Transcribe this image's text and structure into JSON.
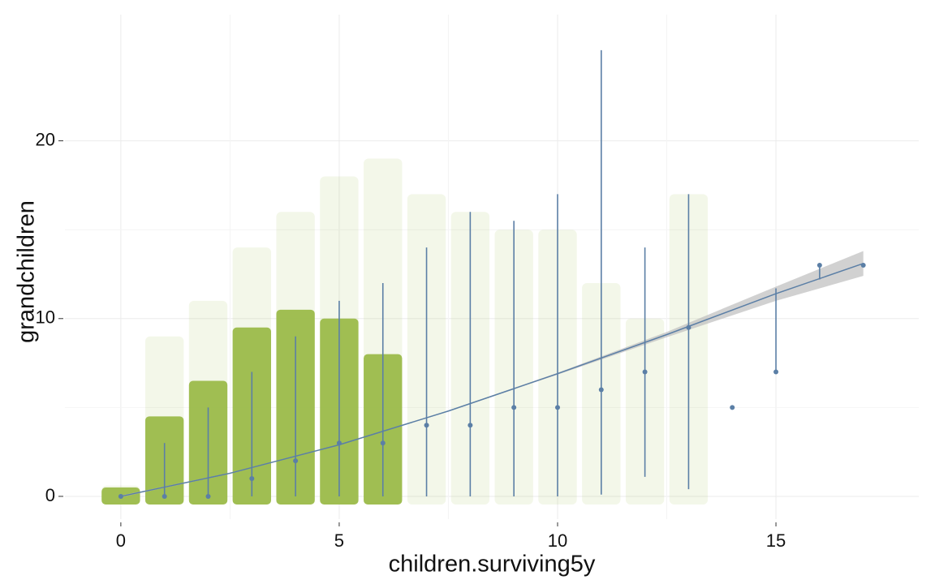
{
  "chart_data": {
    "type": "scatter",
    "x_label": "children.surviving5y",
    "y_label": "grandchildren",
    "xlim": [
      -1.28,
      18.27
    ],
    "ylim": [
      -1.28,
      27.1
    ],
    "xticks": [
      0,
      5,
      10,
      15
    ],
    "yticks": [
      0,
      10,
      20
    ],
    "grid": true,
    "cloud": {
      "color": "#9bbb4a",
      "x": [
        0,
        1,
        2,
        3,
        4,
        5,
        6,
        7,
        8,
        9,
        10,
        11,
        12,
        13
      ],
      "dense_top": [
        0.5,
        4.5,
        6.5,
        9.5,
        10.5,
        10,
        8,
        null,
        null,
        null,
        null,
        null,
        null,
        null
      ],
      "sparse_top": [
        0.6,
        9,
        11,
        14,
        16,
        18,
        19,
        17,
        16,
        15,
        15,
        12,
        10,
        17
      ]
    },
    "summary": {
      "color": "#5b7fa6",
      "x": [
        0,
        1,
        2,
        3,
        4,
        5,
        6,
        7,
        8,
        9,
        10,
        11,
        12,
        13,
        14,
        15,
        16,
        17
      ],
      "values": [
        0,
        0,
        0,
        1,
        2,
        3,
        3,
        4,
        4,
        5,
        5,
        6,
        7,
        9.5,
        5,
        7,
        13,
        13
      ],
      "low": [
        0,
        0,
        0,
        0,
        0,
        0,
        0,
        0,
        0,
        0,
        0,
        0.1,
        1.1,
        0.4,
        null,
        7,
        12.2,
        13
      ],
      "high": [
        0,
        3,
        5,
        7,
        9,
        11,
        12,
        14,
        16,
        15.5,
        17,
        25.1,
        14,
        17,
        null,
        11.7,
        13,
        13
      ]
    },
    "fit": {
      "color": "#5b7fa6",
      "band_color": "#bdbdbd",
      "x": [
        0,
        2.5,
        5,
        7.5,
        10,
        12.5,
        15,
        17
      ],
      "values": [
        0,
        1.3,
        2.9,
        4.8,
        6.9,
        9.1,
        11.4,
        13.1
      ],
      "lower": [
        -0.05,
        1.27,
        2.88,
        4.77,
        6.85,
        8.95,
        11.0,
        12.4
      ],
      "upper": [
        0.05,
        1.33,
        2.92,
        4.83,
        6.95,
        9.25,
        11.8,
        13.8
      ]
    }
  }
}
